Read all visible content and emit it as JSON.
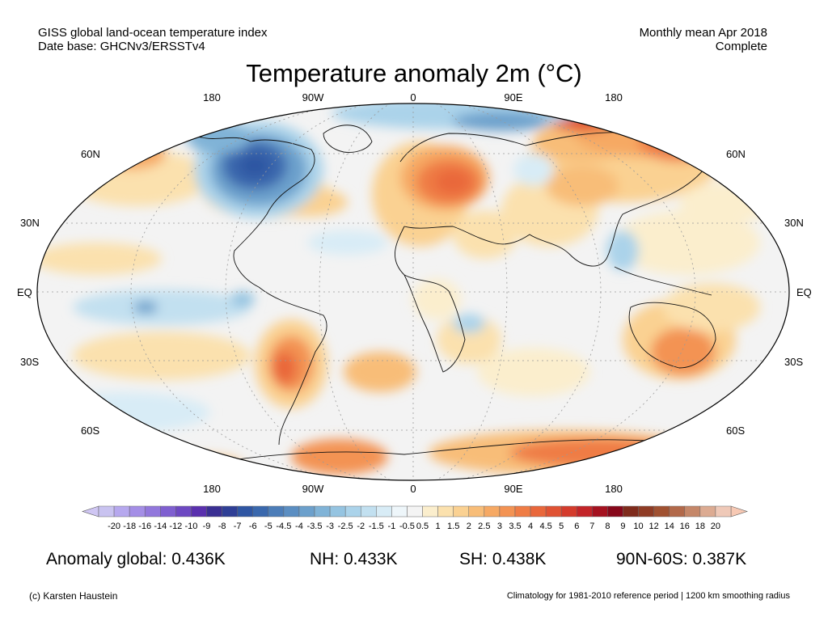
{
  "header": {
    "left_line1": "GISS global land-ocean temperature index",
    "left_line2": "Date base: GHCNv3/ERSSTv4",
    "right_line1": "Monthly mean Apr 2018",
    "right_line2": "Complete"
  },
  "title": "Temperature anomaly 2m (°C)",
  "longitude_labels": [
    "180",
    "90W",
    "0",
    "90E",
    "180"
  ],
  "latitude_labels": {
    "left": [
      "60N",
      "30N",
      "EQ",
      "30S",
      "60S"
    ],
    "right": [
      "60N",
      "30N",
      "EQ",
      "30S",
      "60S"
    ]
  },
  "colorbar": {
    "ticks": [
      "-20",
      "-18",
      "-16",
      "-14",
      "-12",
      "-10",
      "-9",
      "-8",
      "-7",
      "-6",
      "-5",
      "-4.5",
      "-4",
      "-3.5",
      "-3",
      "-2.5",
      "-2",
      "-1.5",
      "-1",
      "-0.5",
      "0.5",
      "1",
      "1.5",
      "2",
      "2.5",
      "3",
      "3.5",
      "4",
      "4.5",
      "5",
      "6",
      "7",
      "8",
      "9",
      "10",
      "12",
      "14",
      "16",
      "18",
      "20"
    ],
    "colors": [
      "#c9c3f0",
      "#b6a8ee",
      "#a48ee6",
      "#9277dc",
      "#7f5fd0",
      "#6d48c2",
      "#5a30ae",
      "#3a2f93",
      "#2f3f96",
      "#2f56a3",
      "#3a68ad",
      "#4c7db8",
      "#5b8ec2",
      "#6ca0cc",
      "#80b3d7",
      "#95c4e1",
      "#abd3ea",
      "#c2e0f0",
      "#d8ecf6",
      "#eef6fa",
      "#f4f4f4",
      "#fbeecd",
      "#fbe1ae",
      "#fad192",
      "#f8bd78",
      "#f6a964",
      "#f39353",
      "#ef7c45",
      "#e9673b",
      "#e05233",
      "#d43b2c",
      "#c32428",
      "#a51220",
      "#87071a",
      "#7f2b1c",
      "#8f3c25",
      "#a05131",
      "#b2694a",
      "#c58769",
      "#dcab92",
      "#efc9b8"
    ],
    "left_arrow_color": "#cfc6f3",
    "right_arrow_color": "#f7c9b4"
  },
  "stats": {
    "global": "Anomaly global: 0.436K",
    "nh": "NH: 0.433K",
    "sh": "SH: 0.438K",
    "polar": "90N-60S: 0.387K"
  },
  "footer": {
    "left": "(c) Karsten Haustein",
    "right": "Climatology for 1981-2010 reference period | 1200 km smoothing radius"
  }
}
